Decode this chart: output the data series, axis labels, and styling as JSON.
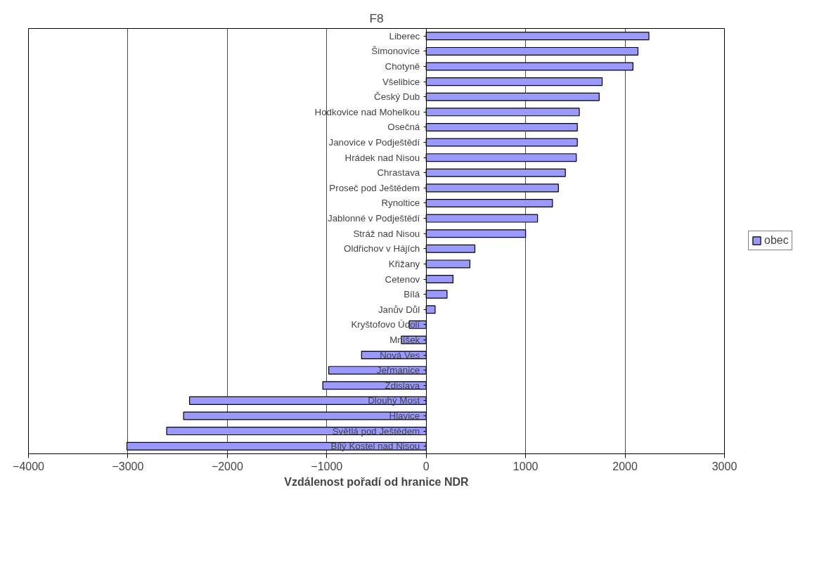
{
  "chart_data": {
    "type": "bar",
    "orientation": "horizontal",
    "title": "F8",
    "xlabel": "Vzdálenost pořadí od hranice NDR",
    "categories": [
      "Liberec",
      "Šimonovice",
      "Chotyně",
      "Všelibice",
      "Český Dub",
      "Hodkovice nad Mohelkou",
      "Osečná",
      "Janovice v Podještědí",
      "Hrádek nad Nisou",
      "Chrastava",
      "Proseč pod Ještědem",
      "Rynoltice",
      "Jablonné v Podještědí",
      "Stráž nad Nisou",
      "Oldřichov v Hájích",
      "Křižany",
      "Cetenov",
      "Bílá",
      "Janův Důl",
      "Kryštofovo Údolí",
      "Mníšek",
      "Nová Ves",
      "Jeřmanice",
      "Zdislava",
      "Dlouhý Most",
      "Hlavice",
      "Světlá pod Ještědem",
      "Bílý Kostel nad Nisou"
    ],
    "series": [
      {
        "name": "obec",
        "color": "#9999ff",
        "values": [
          2240,
          2130,
          2080,
          1770,
          1740,
          1540,
          1520,
          1520,
          1510,
          1400,
          1330,
          1270,
          1120,
          1000,
          490,
          440,
          270,
          210,
          90,
          -170,
          -250,
          -650,
          -980,
          -1040,
          -2380,
          -2440,
          -2610,
          -3010
        ]
      }
    ],
    "xlim": [
      -4000,
      3000
    ],
    "xticks": [
      -4000,
      -3000,
      -2000,
      -1000,
      0,
      1000,
      2000,
      3000
    ],
    "grid": "x",
    "legend": "right"
  }
}
